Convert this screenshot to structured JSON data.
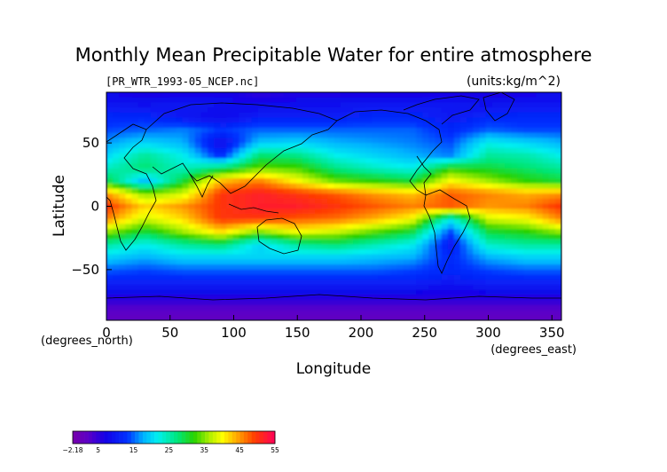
{
  "chart_data": {
    "type": "heatmap",
    "title": "Monthly Mean Precipitable Water for entire atmosphere",
    "source_label": "[PR_WTR_1993-05_NCEP.nc]",
    "units_label": "(units:kg/m^2)",
    "xlabel": "Longitude",
    "ylabel": "Latitude",
    "x_unit_label": "(degrees_east)",
    "y_unit_label": "(degrees_north)",
    "xlim": [
      0,
      357.5
    ],
    "ylim": [
      -90,
      90
    ],
    "x_ticks": [
      0,
      50,
      100,
      150,
      200,
      250,
      300,
      350
    ],
    "y_ticks": [
      50,
      0,
      -50
    ],
    "x_tick_labels": [
      "0",
      "50",
      "100",
      "150",
      "200",
      "250",
      "300",
      "350"
    ],
    "y_tick_labels": [
      "50",
      "0",
      "−50"
    ],
    "colorbar": {
      "min": -2.18,
      "max": 55,
      "tick_labels": [
        "−2.18",
        "5",
        "15",
        "25",
        "35",
        "45",
        "55"
      ],
      "tick_values": [
        -2.18,
        5,
        15,
        25,
        35,
        45,
        55
      ]
    },
    "longitudes": [
      0,
      30,
      60,
      90,
      120,
      150,
      180,
      210,
      240,
      270,
      300,
      330,
      357.5
    ],
    "latitudes": [
      90,
      80,
      70,
      60,
      50,
      40,
      30,
      20,
      10,
      0,
      -10,
      -20,
      -30,
      -40,
      -50,
      -60,
      -70,
      -80,
      -90
    ],
    "values": [
      [
        8,
        6,
        7,
        7,
        5,
        6,
        6,
        6,
        6,
        7,
        6,
        7,
        8
      ],
      [
        10,
        9,
        10,
        9,
        8,
        9,
        9,
        10,
        10,
        10,
        9,
        10,
        10
      ],
      [
        12,
        12,
        10,
        8,
        11,
        11,
        11,
        12,
        12,
        10,
        12,
        12,
        12
      ],
      [
        14,
        15,
        16,
        13,
        15,
        15,
        15,
        15,
        15,
        12,
        15,
        14,
        14
      ],
      [
        17,
        20,
        18,
        8,
        19,
        20,
        18,
        17,
        16,
        14,
        22,
        20,
        18
      ],
      [
        20,
        26,
        22,
        12,
        28,
        27,
        22,
        20,
        18,
        16,
        26,
        25,
        22
      ],
      [
        24,
        28,
        24,
        28,
        34,
        33,
        27,
        24,
        22,
        32,
        30,
        28,
        26
      ],
      [
        30,
        18,
        30,
        43,
        46,
        40,
        34,
        32,
        30,
        40,
        36,
        32,
        30
      ],
      [
        45,
        35,
        38,
        50,
        52,
        50,
        48,
        45,
        43,
        48,
        46,
        44,
        45
      ],
      [
        50,
        42,
        45,
        50,
        52,
        52,
        50,
        48,
        46,
        48,
        45,
        46,
        50
      ],
      [
        46,
        38,
        42,
        50,
        50,
        48,
        47,
        44,
        40,
        22,
        38,
        40,
        46
      ],
      [
        36,
        30,
        36,
        42,
        35,
        40,
        38,
        34,
        30,
        14,
        30,
        32,
        36
      ],
      [
        26,
        22,
        26,
        28,
        20,
        26,
        28,
        25,
        22,
        10,
        24,
        26,
        26
      ],
      [
        20,
        18,
        20,
        20,
        20,
        20,
        20,
        19,
        18,
        12,
        18,
        20,
        20
      ],
      [
        15,
        14,
        15,
        15,
        15,
        15,
        15,
        15,
        14,
        12,
        14,
        15,
        15
      ],
      [
        11,
        11,
        11,
        11,
        11,
        11,
        11,
        11,
        11,
        10,
        11,
        11,
        11
      ],
      [
        7,
        7,
        7,
        7,
        7,
        7,
        7,
        7,
        7,
        7,
        7,
        7,
        7
      ],
      [
        3,
        3,
        3,
        3,
        3,
        3,
        3,
        3,
        3,
        3,
        3,
        3,
        3
      ],
      [
        1,
        1,
        1,
        1,
        1,
        1,
        1,
        1,
        1,
        1,
        1,
        1,
        1
      ]
    ]
  }
}
